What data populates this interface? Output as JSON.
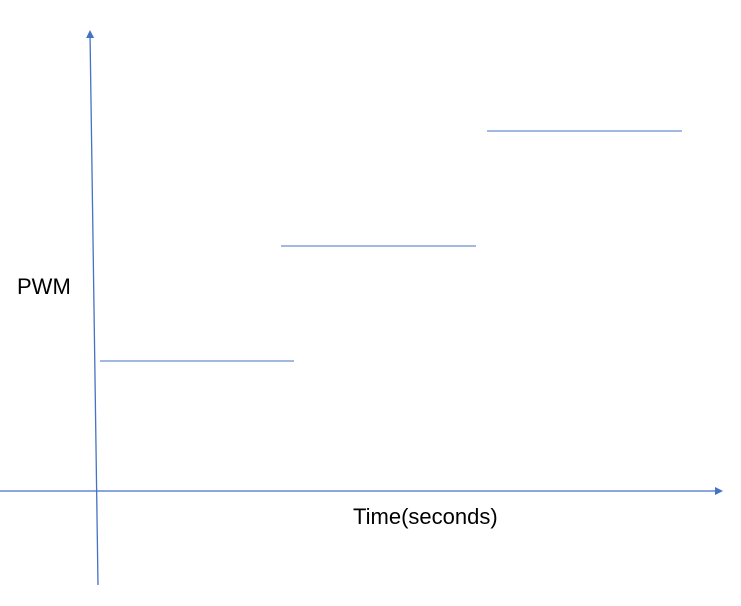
{
  "diagram": {
    "y_axis_label": "PWM",
    "x_axis_label": "Time(seconds)",
    "colors": {
      "axis": "#4472c4",
      "step_line": "#4472c4",
      "text": "#000000"
    }
  }
}
